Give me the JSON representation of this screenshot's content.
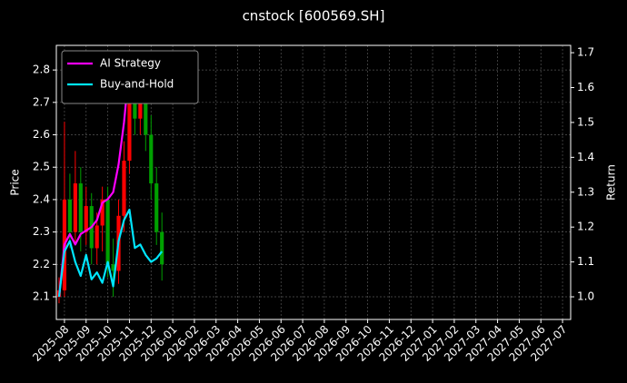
{
  "chart_data": {
    "type": "candlestick",
    "title": "cnstock [600569.SH]",
    "y_label": "Price",
    "y2_label": "Return",
    "categories": [
      null,
      "2025-08",
      null,
      null,
      null,
      "2025-09",
      null,
      null,
      null,
      "2025-10",
      null,
      null,
      null,
      "2025-11",
      null,
      null,
      null,
      "2025-12",
      null,
      null,
      null,
      "2026-01",
      null,
      null,
      null,
      "2026-02",
      null,
      null,
      null,
      "2026-03",
      null,
      null,
      null,
      "2026-04",
      null,
      null,
      null,
      "2026-05",
      null,
      null,
      null,
      "2026-06",
      null,
      null,
      null,
      "2026-07",
      null,
      null,
      null,
      "2026-08",
      null,
      null,
      null,
      "2026-09",
      null,
      null,
      null,
      "2026-10",
      null,
      null,
      null,
      "2026-11",
      null,
      null,
      null,
      "2026-12",
      null,
      null,
      null,
      "2027-01",
      null,
      null,
      null,
      "2027-02",
      null,
      null,
      null,
      "2027-03",
      null,
      null,
      null,
      "2027-04",
      null,
      null,
      null,
      "2027-05",
      null,
      null,
      null,
      "2027-06",
      null,
      null,
      null,
      "2027-07",
      null
    ],
    "open": [
      2.1,
      2.12,
      2.4,
      2.3,
      2.45,
      2.3,
      2.38,
      2.25,
      2.32,
      2.4,
      2.2,
      2.18,
      2.35,
      2.52,
      2.78,
      2.65,
      2.8,
      2.6,
      2.45,
      2.3,
      null,
      null,
      null,
      null,
      null,
      null,
      null,
      null,
      null,
      null,
      null,
      null,
      null,
      null,
      null,
      null,
      null,
      null,
      null,
      null,
      null,
      null,
      null,
      null,
      null,
      null,
      null,
      null,
      null,
      null,
      null,
      null,
      null,
      null,
      null,
      null,
      null,
      null,
      null,
      null,
      null,
      null,
      null,
      null,
      null,
      null,
      null,
      null,
      null,
      null,
      null,
      null,
      null,
      null,
      null,
      null,
      null,
      null,
      null,
      null,
      null,
      null,
      null,
      null,
      null,
      null,
      null,
      null,
      null,
      null,
      null,
      null,
      null,
      null,
      null
    ],
    "high": [
      2.16,
      2.64,
      2.48,
      2.55,
      2.5,
      2.44,
      2.42,
      2.36,
      2.44,
      2.44,
      2.28,
      2.4,
      2.58,
      2.84,
      2.84,
      2.85,
      2.86,
      2.66,
      2.5,
      2.36,
      null,
      null,
      null,
      null,
      null,
      null,
      null,
      null,
      null,
      null,
      null,
      null,
      null,
      null,
      null,
      null,
      null,
      null,
      null,
      null,
      null,
      null,
      null,
      null,
      null,
      null,
      null,
      null,
      null,
      null,
      null,
      null,
      null,
      null,
      null,
      null,
      null,
      null,
      null,
      null,
      null,
      null,
      null,
      null,
      null,
      null,
      null,
      null,
      null,
      null,
      null,
      null,
      null,
      null,
      null,
      null,
      null,
      null,
      null,
      null,
      null,
      null,
      null,
      null,
      null,
      null,
      null,
      null,
      null,
      null,
      null,
      null,
      null,
      null,
      null
    ],
    "low": [
      2.08,
      2.1,
      2.25,
      2.26,
      2.24,
      2.26,
      2.2,
      2.2,
      2.24,
      2.16,
      2.1,
      2.14,
      2.3,
      2.48,
      2.6,
      2.6,
      2.55,
      2.4,
      2.26,
      2.15,
      null,
      null,
      null,
      null,
      null,
      null,
      null,
      null,
      null,
      null,
      null,
      null,
      null,
      null,
      null,
      null,
      null,
      null,
      null,
      null,
      null,
      null,
      null,
      null,
      null,
      null,
      null,
      null,
      null,
      null,
      null,
      null,
      null,
      null,
      null,
      null,
      null,
      null,
      null,
      null,
      null,
      null,
      null,
      null,
      null,
      null,
      null,
      null,
      null,
      null,
      null,
      null,
      null,
      null,
      null,
      null,
      null,
      null,
      null,
      null,
      null,
      null,
      null,
      null,
      null,
      null,
      null,
      null,
      null,
      null,
      null,
      null,
      null,
      null,
      null
    ],
    "close": [
      2.12,
      2.4,
      2.3,
      2.45,
      2.3,
      2.38,
      2.25,
      2.32,
      2.4,
      2.2,
      2.18,
      2.35,
      2.52,
      2.78,
      2.65,
      2.8,
      2.6,
      2.45,
      2.3,
      2.2,
      null,
      null,
      null,
      null,
      null,
      null,
      null,
      null,
      null,
      null,
      null,
      null,
      null,
      null,
      null,
      null,
      null,
      null,
      null,
      null,
      null,
      null,
      null,
      null,
      null,
      null,
      null,
      null,
      null,
      null,
      null,
      null,
      null,
      null,
      null,
      null,
      null,
      null,
      null,
      null,
      null,
      null,
      null,
      null,
      null,
      null,
      null,
      null,
      null,
      null,
      null,
      null,
      null,
      null,
      null,
      null,
      null,
      null,
      null,
      null,
      null,
      null,
      null,
      null,
      null,
      null,
      null,
      null,
      null,
      null,
      null,
      null,
      null,
      null,
      null
    ],
    "up_color": "#ff0000",
    "down_color": "#00a000",
    "series": [
      {
        "name": "AI Strategy",
        "color": "#ff00ff",
        "axis": "y2",
        "values": [
          1.0,
          1.15,
          1.18,
          1.15,
          1.18,
          1.19,
          1.2,
          1.22,
          1.27,
          1.28,
          1.3,
          1.38,
          1.5,
          1.66,
          1.7,
          1.68,
          1.61,
          1.63,
          1.64,
          1.66,
          null,
          null,
          null,
          null,
          null,
          null,
          null,
          null,
          null,
          null,
          null,
          null,
          null,
          null,
          null,
          null,
          null,
          null,
          null,
          null,
          null,
          null,
          null,
          null,
          null,
          null,
          null,
          null,
          null,
          null,
          null,
          null,
          null,
          null,
          null,
          null,
          null,
          null,
          null,
          null,
          null,
          null,
          null,
          null,
          null,
          null,
          null,
          null,
          null,
          null,
          null,
          null,
          null,
          null,
          null,
          null,
          null,
          null,
          null,
          null,
          null,
          null,
          null,
          null,
          null,
          null,
          null,
          null,
          null,
          null,
          null,
          null,
          null,
          null,
          null
        ]
      },
      {
        "name": "Buy-and-Hold",
        "color": "#00e5ff",
        "axis": "y2",
        "values": [
          1.0,
          1.13,
          1.16,
          1.1,
          1.06,
          1.12,
          1.05,
          1.07,
          1.04,
          1.1,
          1.03,
          1.16,
          1.22,
          1.25,
          1.14,
          1.15,
          1.12,
          1.1,
          1.11,
          1.13,
          null,
          null,
          null,
          null,
          null,
          null,
          null,
          null,
          null,
          null,
          null,
          null,
          null,
          null,
          null,
          null,
          null,
          null,
          null,
          null,
          null,
          null,
          null,
          null,
          null,
          null,
          null,
          null,
          null,
          null,
          null,
          null,
          null,
          null,
          null,
          null,
          null,
          null,
          null,
          null,
          null,
          null,
          null,
          null,
          null,
          null,
          null,
          null,
          null,
          null,
          null,
          null,
          null,
          null,
          null,
          null,
          null,
          null,
          null,
          null,
          null,
          null,
          null,
          null,
          null,
          null,
          null,
          null,
          null,
          null,
          null,
          null,
          null,
          null,
          null
        ]
      }
    ],
    "ylim": [
      2.03,
      2.876
    ],
    "yticks": [
      2.1,
      2.2,
      2.3,
      2.4,
      2.5,
      2.6,
      2.7,
      2.8
    ],
    "y2lim": [
      0.935,
      1.721
    ],
    "y2ticks": [
      {
        "value": 1,
        "label": "1.0"
      },
      1.1,
      1.2,
      1.3,
      1.4,
      1.5,
      1.6,
      1.7
    ],
    "grid": true,
    "legend": "upper left"
  }
}
